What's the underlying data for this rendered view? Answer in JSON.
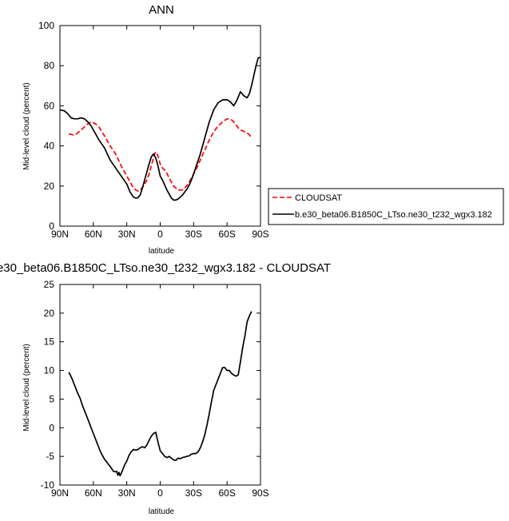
{
  "chart_data": [
    {
      "type": "line",
      "title": "ANN",
      "xlabel": "latitude",
      "ylabel": "Mid-level cloud (percent)",
      "xlim": [
        -90,
        90
      ],
      "ylim": [
        0,
        100
      ],
      "x_ticks": [
        -90,
        -60,
        -30,
        0,
        30,
        60,
        90
      ],
      "x_tick_labels": [
        "90N",
        "60N",
        "30N",
        "0",
        "30S",
        "60S",
        "90S"
      ],
      "y_ticks": [
        0,
        20,
        40,
        60,
        80,
        100
      ],
      "y_tick_labels": [
        "0",
        "20",
        "40",
        "60",
        "80",
        "100"
      ],
      "legend_position": "right",
      "series": [
        {
          "name": "CLOUDSAT",
          "color": "#ff0000",
          "dash": "dashed",
          "x": [
            -82,
            -78,
            -75,
            -72,
            -68,
            -65,
            -62,
            -60,
            -58,
            -55,
            -50,
            -45,
            -40,
            -35,
            -30,
            -25,
            -22,
            -20,
            -18,
            -15,
            -12,
            -10,
            -8,
            -6,
            -5,
            -4,
            -2,
            0,
            2,
            5,
            8,
            12,
            16,
            20,
            22,
            25,
            28,
            32,
            36,
            40,
            44,
            48,
            52,
            56,
            60,
            62,
            64,
            66,
            68,
            70,
            72,
            74,
            76,
            78,
            80,
            82
          ],
          "values": [
            46,
            45.5,
            46,
            47.5,
            49.5,
            51,
            52,
            51.5,
            51,
            49.5,
            45,
            40,
            36,
            30,
            25,
            20,
            18,
            17.5,
            18,
            20,
            23,
            26,
            30,
            34,
            36,
            37,
            35,
            31,
            29,
            27.5,
            24,
            20,
            18,
            18,
            19,
            21,
            24,
            28,
            33,
            38,
            43,
            47,
            50,
            52,
            53.5,
            53.5,
            53,
            52,
            50.5,
            49,
            48,
            47.5,
            47,
            46.5,
            45.5,
            44
          ]
        },
        {
          "name": "b.e30_beta06.B1850C_LTso.ne30_t232_wgx3.182",
          "color": "#000000",
          "dash": "solid",
          "x": [
            -90,
            -86,
            -83,
            -80,
            -77,
            -74,
            -71,
            -68,
            -65,
            -62,
            -59,
            -55,
            -50,
            -45,
            -40,
            -35,
            -30,
            -27,
            -24,
            -22,
            -20,
            -18,
            -16,
            -14,
            -12,
            -10,
            -8,
            -6,
            -5,
            -4,
            -2,
            0,
            2,
            4,
            6,
            8,
            10,
            12,
            14,
            16,
            18,
            20,
            22,
            24,
            26,
            28,
            30,
            33,
            36,
            40,
            44,
            48,
            52,
            56,
            60,
            63,
            66,
            69,
            72,
            75,
            78,
            80,
            82,
            84,
            86,
            88,
            90
          ],
          "values": [
            58,
            57.5,
            56,
            54,
            53.5,
            53.5,
            54,
            53.5,
            52,
            50,
            47,
            43,
            39,
            33,
            29,
            25,
            21,
            17,
            14.5,
            14,
            14.2,
            15.5,
            19,
            23,
            27,
            31,
            34.5,
            36,
            35,
            34,
            30,
            25,
            23,
            20.5,
            18,
            16,
            14,
            13,
            13,
            13.5,
            14.5,
            15.5,
            17,
            18.5,
            20.5,
            23,
            26,
            31,
            36,
            44,
            52,
            58,
            61.5,
            63,
            63,
            62,
            60,
            63,
            67,
            65,
            64,
            66,
            70,
            75,
            80,
            84,
            84
          ]
        }
      ]
    },
    {
      "type": "line",
      "title": "e30_beta06.B1850C_LTso.ne30_t232_wgx3.182 - CLOUDSAT",
      "xlabel": "latitude",
      "ylabel": "Mid-level cloud (percent)",
      "xlim": [
        -90,
        90
      ],
      "ylim": [
        -10,
        25
      ],
      "x_ticks": [
        -90,
        -60,
        -30,
        0,
        30,
        60,
        90
      ],
      "x_tick_labels": [
        "90N",
        "60N",
        "30N",
        "0",
        "30S",
        "60S",
        "90S"
      ],
      "y_ticks": [
        -10,
        -5,
        0,
        5,
        10,
        15,
        20,
        25
      ],
      "y_tick_labels": [
        "-10",
        "-5",
        "0",
        "5",
        "10",
        "15",
        "20",
        "25"
      ],
      "series": [
        {
          "color": "#000000",
          "x": [
            -82,
            -79,
            -76,
            -74,
            -72,
            -70,
            -68,
            -66,
            -64,
            -62,
            -60,
            -58,
            -56,
            -54,
            -52,
            -50,
            -48,
            -46,
            -44,
            -42,
            -40,
            -39,
            -38,
            -37,
            -36,
            -34,
            -32,
            -30,
            -28,
            -26,
            -24,
            -22,
            -20,
            -18,
            -16,
            -14,
            -12,
            -10,
            -8,
            -6,
            -4,
            -2,
            0,
            2,
            4,
            6,
            8,
            10,
            12,
            14,
            16,
            18,
            20,
            22,
            24,
            26,
            28,
            30,
            32,
            34,
            36,
            38,
            40,
            42,
            44,
            46,
            48,
            50,
            52,
            54,
            56,
            58,
            60,
            62,
            64,
            66,
            68,
            70,
            72,
            74,
            76,
            78,
            80,
            82
          ],
          "values": [
            9.7,
            8.5,
            7,
            6,
            5.2,
            4,
            3,
            2,
            1,
            0,
            -1,
            -2,
            -3,
            -4,
            -4.8,
            -5.5,
            -6,
            -6.5,
            -7,
            -7.6,
            -7.7,
            -7.6,
            -8.3,
            -7.8,
            -8.4,
            -7.5,
            -6.5,
            -5.8,
            -4.8,
            -4.2,
            -3.8,
            -3.9,
            -3.8,
            -3.5,
            -3.3,
            -3.5,
            -3,
            -2.2,
            -1.5,
            -1,
            -0.8,
            -2.5,
            -4,
            -4.5,
            -5,
            -5.2,
            -5,
            -5.3,
            -5.6,
            -5.7,
            -5.3,
            -5.4,
            -5.2,
            -5.1,
            -5,
            -4.9,
            -4.6,
            -4.5,
            -4.5,
            -4.2,
            -3.5,
            -2.5,
            -1.2,
            0.5,
            2.5,
            4.5,
            6.5,
            7.5,
            8.5,
            9.5,
            10.5,
            10.5,
            10,
            10,
            9.5,
            9.2,
            9,
            9.2,
            11.5,
            14,
            16,
            18.5,
            19.5,
            20.3
          ]
        }
      ]
    }
  ]
}
